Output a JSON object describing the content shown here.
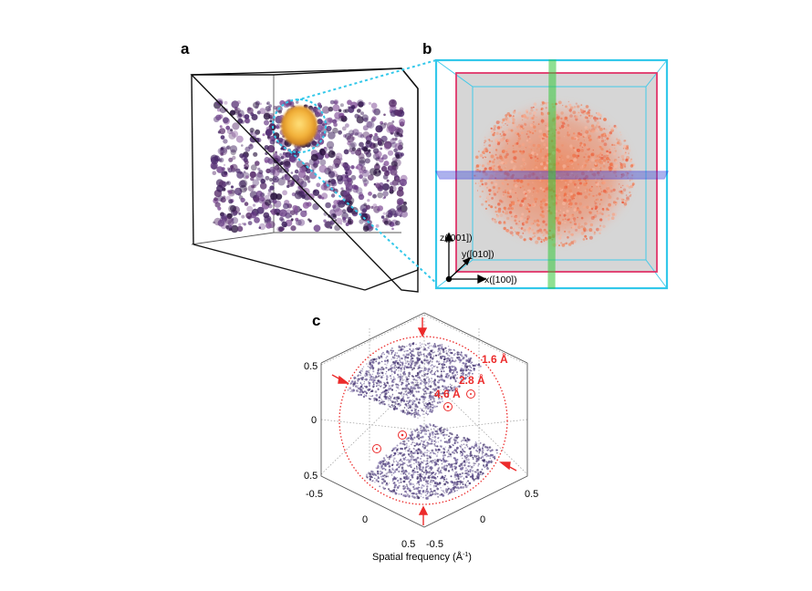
{
  "panels": {
    "a": {
      "label": "a"
    },
    "b": {
      "label": "b",
      "axes": {
        "z": "z([001])",
        "y": "y([010])",
        "x": "x([100])"
      }
    },
    "c": {
      "label": "c",
      "xlabel": "Spatial frequency (Å",
      "xlabel_sup": "-1",
      "xlabel_close": ")",
      "rings": [
        "1.6 Å",
        "2.8 Å",
        "4.6 Å"
      ],
      "vertical_ticks": [
        "0.5",
        "0",
        "0.5"
      ],
      "left_axis_ticks": [
        "-0.5",
        "0",
        "0.5"
      ],
      "right_axis_ticks": [
        "0.5",
        "0",
        "-0.5"
      ]
    }
  },
  "colors": {
    "box_edge": "#111111",
    "cyan": "#33c8ea",
    "magenta": "#e0356a",
    "green": "#35c83a",
    "blue_plane": "#2a2ae0",
    "annotation_red": "#ec2b2b",
    "point_cloud": "#5b4a86",
    "gold_particle": "#f2b13a"
  }
}
